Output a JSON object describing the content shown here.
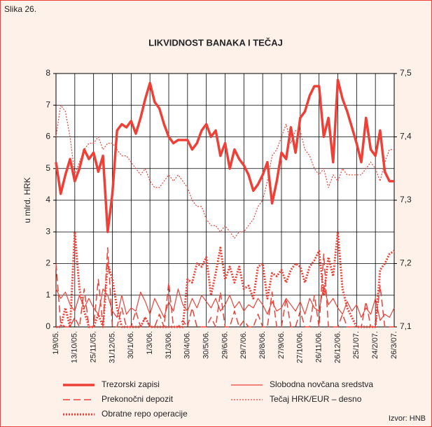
{
  "chart_data": {
    "type": "line",
    "figure_label": "Slika 26.",
    "title": "LIKVIDNOST BANAKA I TEČAJ",
    "y_axis_label": "u mlrd. HRK",
    "source": "Izvor: HNB",
    "categories": [
      "1/9/05.",
      null,
      null,
      null,
      "13/10/05.",
      null,
      null,
      null,
      "25/11/05.",
      null,
      null,
      null,
      "31/12/05.",
      null,
      null,
      null,
      "30/1/06.",
      null,
      null,
      null,
      "1/3/06.",
      null,
      null,
      null,
      "31/3/06.",
      null,
      null,
      null,
      "30/4/06.",
      null,
      null,
      null,
      "30/5/06.",
      null,
      null,
      null,
      "29/6/06.",
      null,
      null,
      null,
      "29/7/06.",
      null,
      null,
      null,
      "28/8/06.",
      null,
      null,
      null,
      "27/9/06.",
      null,
      null,
      null,
      "27/10/06.",
      null,
      null,
      null,
      "26/11/06.",
      null,
      null,
      null,
      "26/12/06.",
      null,
      null,
      null,
      "25/1/07.",
      null,
      null,
      null,
      "24/2/07.",
      null,
      null,
      null,
      "26/3/07."
    ],
    "ylim": [
      0,
      8
    ],
    "yticks": [
      0,
      1,
      2,
      3,
      4,
      5,
      6,
      7,
      8
    ],
    "y2lim": [
      7.1,
      7.5
    ],
    "y2ticks": [
      {
        "value": 7.1,
        "label": "7,1"
      },
      {
        "value": 7.2,
        "label": "7,2"
      },
      {
        "value": 7.3,
        "label": "7,3"
      },
      {
        "value": 7.4,
        "label": "7,4"
      },
      {
        "value": 7.5,
        "label": "7,5"
      }
    ],
    "grid": true,
    "series": [
      {
        "name": "Trezorski zapisi",
        "color": "#ee4036",
        "dash": "solid",
        "width": 3.5,
        "values": [
          5.2,
          4.2,
          4.8,
          5.3,
          4.6,
          5.0,
          5.6,
          5.3,
          5.5,
          4.9,
          5.4,
          3.0,
          4.2,
          6.2,
          6.4,
          6.3,
          6.5,
          6.1,
          6.6,
          7.2,
          7.7,
          7.1,
          6.9,
          6.4,
          6.0,
          5.8,
          5.9,
          5.9,
          5.9,
          5.6,
          5.8,
          6.2,
          6.4,
          6.0,
          6.2,
          5.4,
          5.8,
          5.0,
          5.6,
          5.3,
          5.1,
          4.8,
          4.3,
          4.5,
          4.8,
          5.2,
          3.9,
          4.6,
          5.5,
          5.3,
          6.3,
          5.5,
          6.6,
          6.8,
          7.3,
          7.6,
          7.6,
          6.0,
          6.6,
          5.2,
          7.8,
          7.2,
          6.8,
          6.3,
          5.8,
          5.2,
          6.6,
          5.6,
          5.4,
          6.2,
          4.9,
          4.6,
          4.6
        ]
      },
      {
        "name": "Slobodna novčana sredstva",
        "color": "#ee4036",
        "dash": "solid",
        "width": 1.2,
        "values": [
          1.2,
          0.9,
          1.1,
          0.7,
          0.5,
          1.0,
          0.6,
          0.9,
          0.6,
          0.4,
          1.2,
          1.0,
          0.5,
          0.3,
          1.0,
          0.4,
          0.6,
          0.5,
          1.1,
          0.8,
          0.4,
          0.9,
          0.6,
          0.3,
          0.8,
          0.5,
          1.2,
          0.7,
          0.5,
          0.9,
          0.6,
          1.0,
          0.8,
          0.6,
          0.9,
          0.5,
          0.7,
          1.0,
          0.6,
          0.8,
          0.5,
          0.7,
          0.6,
          0.9,
          0.7,
          0.4,
          0.8,
          0.5,
          0.6,
          0.9,
          0.7,
          0.5,
          0.8,
          0.4,
          0.9,
          0.6,
          0.5,
          1.3,
          0.7,
          0.9,
          0.6,
          0.4,
          0.8,
          0.5,
          0.7,
          0.3,
          0.6,
          0.4,
          0.9,
          0.2,
          0.4,
          0.3,
          0.6
        ]
      },
      {
        "name": "Prekonočni depozit",
        "color": "#ee4036",
        "dash": "dashed",
        "width": 1.5,
        "values": [
          2.0,
          0.1,
          0,
          0,
          0.3,
          0,
          1.2,
          0,
          0,
          1.5,
          0,
          2.5,
          0,
          0,
          0.6,
          0,
          0,
          0.5,
          0,
          0.3,
          0,
          0,
          0.4,
          0,
          1.4,
          0,
          0,
          0.2,
          0,
          0.6,
          0,
          0,
          0,
          0.3,
          0,
          1.1,
          0,
          0,
          0.5,
          0,
          0.2,
          0,
          0,
          0.4,
          0,
          0,
          1.1,
          0,
          0,
          0.9,
          0,
          0,
          0.5,
          0,
          0,
          1.0,
          0,
          2.3,
          0,
          0,
          0,
          0.4,
          0,
          0,
          0,
          0,
          0.8,
          0,
          0,
          1.3,
          0,
          0,
          0
        ]
      },
      {
        "name": "Tečaj HRK/EUR – desno",
        "color": "#ee4036",
        "dash": "dotted",
        "width": 1.2,
        "axis": "y2",
        "values": [
          7.4,
          7.45,
          7.44,
          7.4,
          7.34,
          7.36,
          7.38,
          7.39,
          7.39,
          7.4,
          7.38,
          7.39,
          7.39,
          7.38,
          7.37,
          7.37,
          7.36,
          7.35,
          7.34,
          7.35,
          7.33,
          7.32,
          7.32,
          7.33,
          7.34,
          7.33,
          7.34,
          7.33,
          7.32,
          7.3,
          7.29,
          7.29,
          7.27,
          7.26,
          7.26,
          7.25,
          7.26,
          7.25,
          7.24,
          7.25,
          7.25,
          7.26,
          7.27,
          7.29,
          7.3,
          7.33,
          7.37,
          7.38,
          7.4,
          7.42,
          7.39,
          7.41,
          7.41,
          7.38,
          7.37,
          7.35,
          7.34,
          7.35,
          7.32,
          7.34,
          7.33,
          7.35,
          7.34,
          7.34,
          7.34,
          7.34,
          7.35,
          7.36,
          7.35,
          7.33,
          7.36,
          7.38,
          7.38
        ]
      },
      {
        "name": "Obratne repo operacije",
        "color": "#ee4036",
        "dash": "dotted",
        "width": 3,
        "values": [
          0,
          0,
          0.6,
          0,
          3.0,
          1.2,
          0.5,
          0,
          0,
          0.4,
          0,
          2.0,
          1.5,
          0.6,
          0,
          0,
          0,
          0,
          0,
          0.3,
          0,
          0,
          0,
          0,
          0,
          0,
          0,
          0,
          1.5,
          1.4,
          2.0,
          1.9,
          2.2,
          1.0,
          1.7,
          2.5,
          1.5,
          1.9,
          1.4,
          1.9,
          1.2,
          1.3,
          0.9,
          1.9,
          2.0,
          0.9,
          1.7,
          1.6,
          1.8,
          1.4,
          1.8,
          2.0,
          1.9,
          1.4,
          1.9,
          2.1,
          2.4,
          1.0,
          2.2,
          1.6,
          3.0,
          1.2,
          0.6,
          0.3,
          0,
          0,
          0,
          0,
          0,
          1.8,
          2.0,
          2.3,
          2.4
        ]
      }
    ]
  }
}
